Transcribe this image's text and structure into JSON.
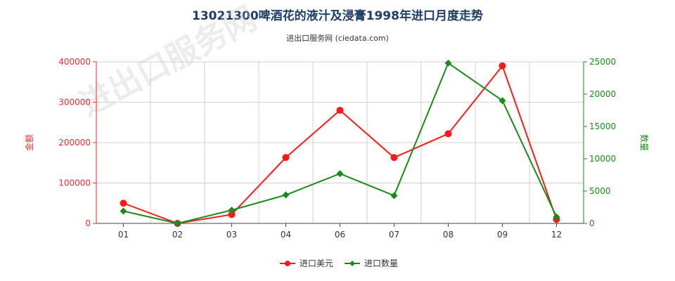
{
  "title": "13021300啤酒花的液汁及浸膏1998年进口月度走势",
  "subtitle": "进出口服务网 (ciedata.com)",
  "chart_data": {
    "type": "line",
    "categories": [
      "01",
      "02",
      "03",
      "04",
      "06",
      "07",
      "08",
      "09",
      "12"
    ],
    "series": [
      {
        "name": "进口美元",
        "axis": "left",
        "color": "#ff1a1a",
        "values": [
          50000,
          0,
          22000,
          163000,
          280000,
          163000,
          222000,
          390000,
          10000
        ]
      },
      {
        "name": "进口数量",
        "axis": "right",
        "color": "#1b8a1b",
        "values": [
          1900,
          0,
          2050,
          4400,
          7700,
          4300,
          24800,
          19000,
          1000
        ]
      }
    ],
    "ylabel_left": "金额",
    "ylabel_right": "数量",
    "ylim_left": [
      0,
      400000
    ],
    "ylim_right": [
      0,
      25000
    ],
    "yticks_left": [
      "0",
      "100000",
      "200000",
      "300000",
      "400000"
    ],
    "yticks_right": [
      "0",
      "5000",
      "10000",
      "15000",
      "20000",
      "25000"
    ],
    "grid": true,
    "legend_position": "bottom"
  },
  "watermark": "进出口服务网"
}
